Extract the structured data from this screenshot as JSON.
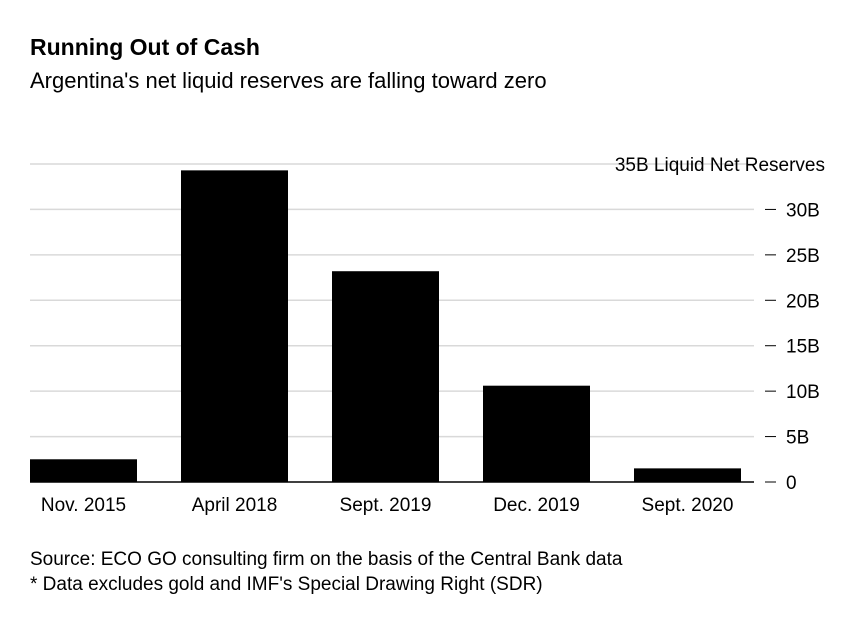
{
  "header": {
    "title": "Running Out of Cash",
    "subtitle": "Argentina's net liquid reserves are falling toward zero"
  },
  "chart_data": {
    "type": "bar",
    "title": "Running Out of Cash",
    "subtitle": "Argentina's net liquid reserves are falling toward zero",
    "categories": [
      "Nov. 2015",
      "April 2018",
      "Sept. 2019",
      "Dec. 2019",
      "Sept. 2020"
    ],
    "values": [
      2.5,
      34.3,
      23.2,
      10.6,
      1.5
    ],
    "ylim": [
      0,
      35
    ],
    "yticks": [
      0,
      5,
      10,
      15,
      20,
      25,
      30,
      35
    ],
    "ytick_labels": [
      "0",
      "5B",
      "10B",
      "15B",
      "20B",
      "25B",
      "30B",
      "35B Liquid Net Reserves"
    ],
    "ylabel": "Liquid Net Reserves",
    "xlabel": "",
    "bar_color": "#000000",
    "grid": true,
    "axis_side": "right"
  },
  "footer": {
    "source": "Source: ECO GO consulting firm on the basis of the Central Bank data",
    "note": "* Data excludes gold and IMF's Special Drawing Right (SDR)"
  }
}
